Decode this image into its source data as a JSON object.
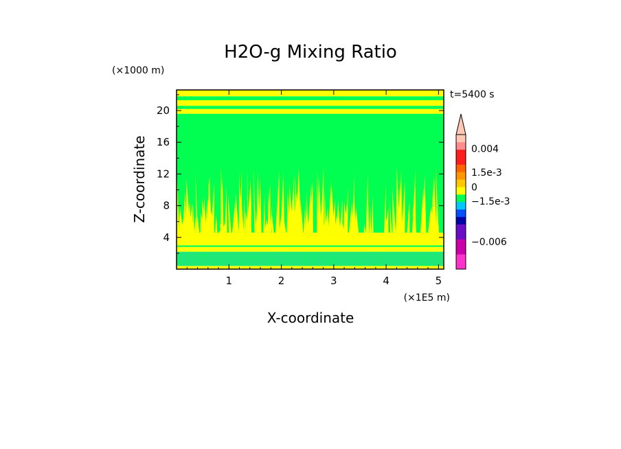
{
  "chart_data": {
    "type": "heatmap",
    "title": "H2O-g Mixing Ratio",
    "xlabel": "X-coordinate",
    "ylabel": "Z-coordinate",
    "x_scale_label": "(×1E5 m)",
    "y_scale_label": "(×1000 m)",
    "time_label": "t=5400 s",
    "xlim": [
      0,
      5.1
    ],
    "ylim": [
      0,
      22.6
    ],
    "xticks": [
      1,
      2,
      3,
      4,
      5
    ],
    "yticks": [
      4,
      8,
      12,
      16,
      20
    ],
    "bands": [
      {
        "z0": 0.0,
        "z1": 0.4,
        "level": "yellow"
      },
      {
        "z0": 0.4,
        "z1": 2.2,
        "level": "teal"
      },
      {
        "z0": 2.2,
        "z1": 2.8,
        "level": "yellow"
      },
      {
        "z0": 2.8,
        "z1": 3.0,
        "level": "green"
      },
      {
        "z0": 3.0,
        "z1": 4.6,
        "level": "yellow"
      },
      {
        "z0": 4.6,
        "z1": 19.6,
        "level": "green"
      },
      {
        "z0": 19.6,
        "z1": 20.2,
        "level": "yellow"
      },
      {
        "z0": 20.2,
        "z1": 20.6,
        "level": "green"
      },
      {
        "z0": 20.6,
        "z1": 21.3,
        "level": "yellow"
      },
      {
        "z0": 21.3,
        "z1": 21.8,
        "level": "green"
      },
      {
        "z0": 21.8,
        "z1": 22.6,
        "level": "yellow"
      }
    ],
    "plumes": {
      "z_base": 4.6,
      "z_max": 13.0,
      "count": 150,
      "seed": 7
    },
    "colors": {
      "yellow": "#ffff00",
      "green": "#00ff50",
      "teal": "#20e878"
    },
    "colorbar": {
      "segments": [
        "#ff33cc",
        "#ff33cc",
        "#cc00aa",
        "#cc00aa",
        "#6a0dc8",
        "#6a0dc8",
        "#0000aa",
        "#0050ff",
        "#00c8ff",
        "#00ff50",
        "#ffff00",
        "#ffc800",
        "#ff9600",
        "#ff6400",
        "#ff1e1e",
        "#ff1e1e",
        "#ff8c8c",
        "#ffc8b4"
      ],
      "labels": [
        {
          "text": "0.004",
          "pos": 0.895
        },
        {
          "text": "1.5e-3",
          "pos": 0.72
        },
        {
          "text": "0",
          "pos": 0.61
        },
        {
          "text": "−1.5e-3",
          "pos": 0.505
        },
        {
          "text": "−0.006",
          "pos": 0.205
        }
      ]
    }
  }
}
